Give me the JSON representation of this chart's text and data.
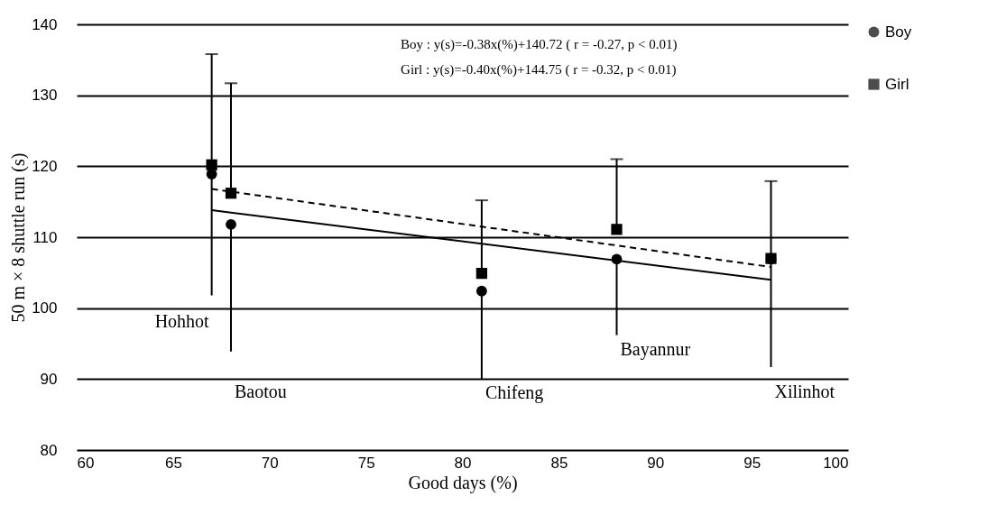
{
  "chart_data": {
    "type": "scatter",
    "xlabel": "Good days (%)",
    "ylabel": "50 m × 8 shuttle run (s)",
    "xlim": [
      60,
      100
    ],
    "xticks": [
      60,
      65,
      70,
      75,
      80,
      85,
      90,
      95,
      100
    ],
    "ylim": [
      80,
      140
    ],
    "yticks": [
      80,
      90,
      100,
      110,
      120,
      130,
      140
    ],
    "grid": "y",
    "legend": "right",
    "series": [
      {
        "name": "Boy",
        "color": "#000000",
        "marker": "circle",
        "x": [
          67,
          68,
          81,
          88,
          96
        ],
        "values": [
          118.9,
          111.8,
          102.4,
          106.9,
          106.9
        ],
        "errors": [
          [
            101.8,
            118.9
          ],
          [
            93.9,
            111.8
          ],
          [
            90.0,
            102.4
          ],
          [
            96.2,
            106.9
          ],
          [
            91.7,
            106.9
          ]
        ]
      },
      {
        "name": "Girl",
        "color": "#000000",
        "marker": "square",
        "x": [
          67,
          68,
          81,
          88,
          96
        ],
        "values": [
          120.2,
          116.2,
          104.9,
          111.1,
          107.0
        ],
        "errors": [
          [
            120.2,
            135.8
          ],
          [
            116.2,
            131.7
          ],
          [
            104.9,
            115.2
          ],
          [
            111.1,
            121.0
          ],
          [
            107.0,
            117.9
          ]
        ]
      },
      {
        "type": "line",
        "color": "#000000",
        "line_style": "solid",
        "x": [
          67,
          96
        ],
        "values": [
          113.8,
          104.0
        ]
      },
      {
        "type": "line",
        "color": "#000000",
        "line_style": "dashed",
        "x": [
          67,
          96
        ],
        "values": [
          116.8,
          105.8
        ]
      }
    ],
    "annotations": [
      "Boy : y(s)=-0.38x(%)+140.72 ( r = -0.27, p < 0.01)",
      "Girl : y(s)=-0.40x(%)+144.75 ( r = -0.32, p < 0.01)",
      {
        "text": "Hohhot",
        "x": 67,
        "y": 101.8
      },
      {
        "text": "Baotou",
        "x": 68,
        "y": 93.9
      },
      {
        "text": "Chifeng",
        "x": 81,
        "y": 90.0
      },
      {
        "text": "Bayannur",
        "x": 88,
        "y": 96.2
      },
      {
        "text": "Xilinhot",
        "x": 96,
        "y": 91.7
      }
    ]
  }
}
